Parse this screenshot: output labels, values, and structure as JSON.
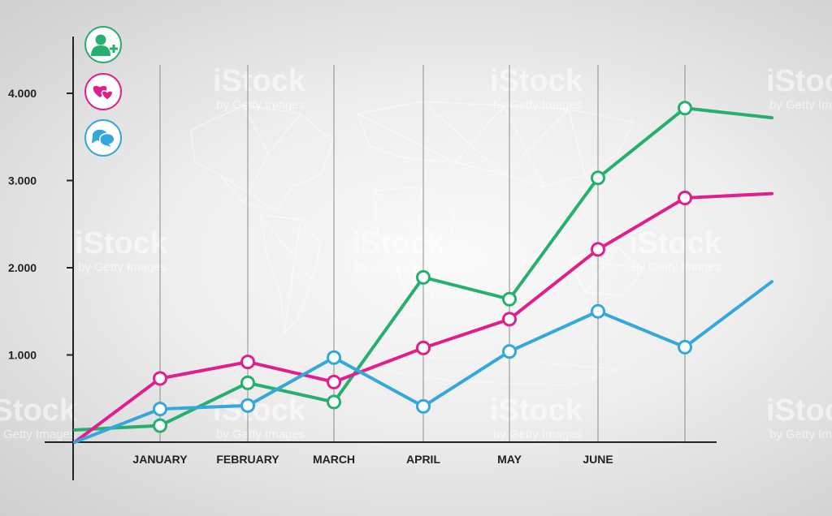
{
  "chart_data": {
    "type": "line",
    "title": "",
    "xlabel": "",
    "ylabel": "",
    "categories": [
      "",
      "JANUARY",
      "FEBRUARY",
      "MARCH",
      "APRIL",
      "MAY",
      "JUNE",
      "",
      ""
    ],
    "y_tick_labels": [
      "1.000",
      "2.000",
      "3.000",
      "4.000"
    ],
    "y_ticks": [
      1000,
      2000,
      3000,
      4000
    ],
    "ylim": [
      0,
      4500
    ],
    "grid": "vertical",
    "series": [
      {
        "color": "#26b06f",
        "values": [
          140,
          190,
          680,
          460,
          1890,
          1640,
          3030,
          3830,
          3720
        ],
        "markers": [
          false,
          true,
          true,
          true,
          true,
          true,
          true,
          true,
          false
        ]
      },
      {
        "color": "#e01e8c",
        "values": [
          0,
          730,
          920,
          690,
          1080,
          1410,
          2210,
          2800,
          2850
        ],
        "markers": [
          false,
          true,
          true,
          true,
          true,
          true,
          true,
          true,
          false
        ]
      },
      {
        "color": "#34a7db",
        "values": [
          0,
          380,
          420,
          970,
          410,
          1040,
          1500,
          1090,
          1840
        ],
        "markers": [
          false,
          true,
          true,
          true,
          true,
          true,
          true,
          true,
          false
        ]
      }
    ]
  },
  "legend_icons": [
    {
      "icon": "user-add-icon",
      "color": "#26b06f"
    },
    {
      "icon": "hearts-icon",
      "color": "#e01e8c"
    },
    {
      "icon": "chat-bubbles-icon",
      "color": "#34a7db"
    }
  ],
  "watermark": {
    "brand": "iStock",
    "sub": "by Getty Images"
  }
}
